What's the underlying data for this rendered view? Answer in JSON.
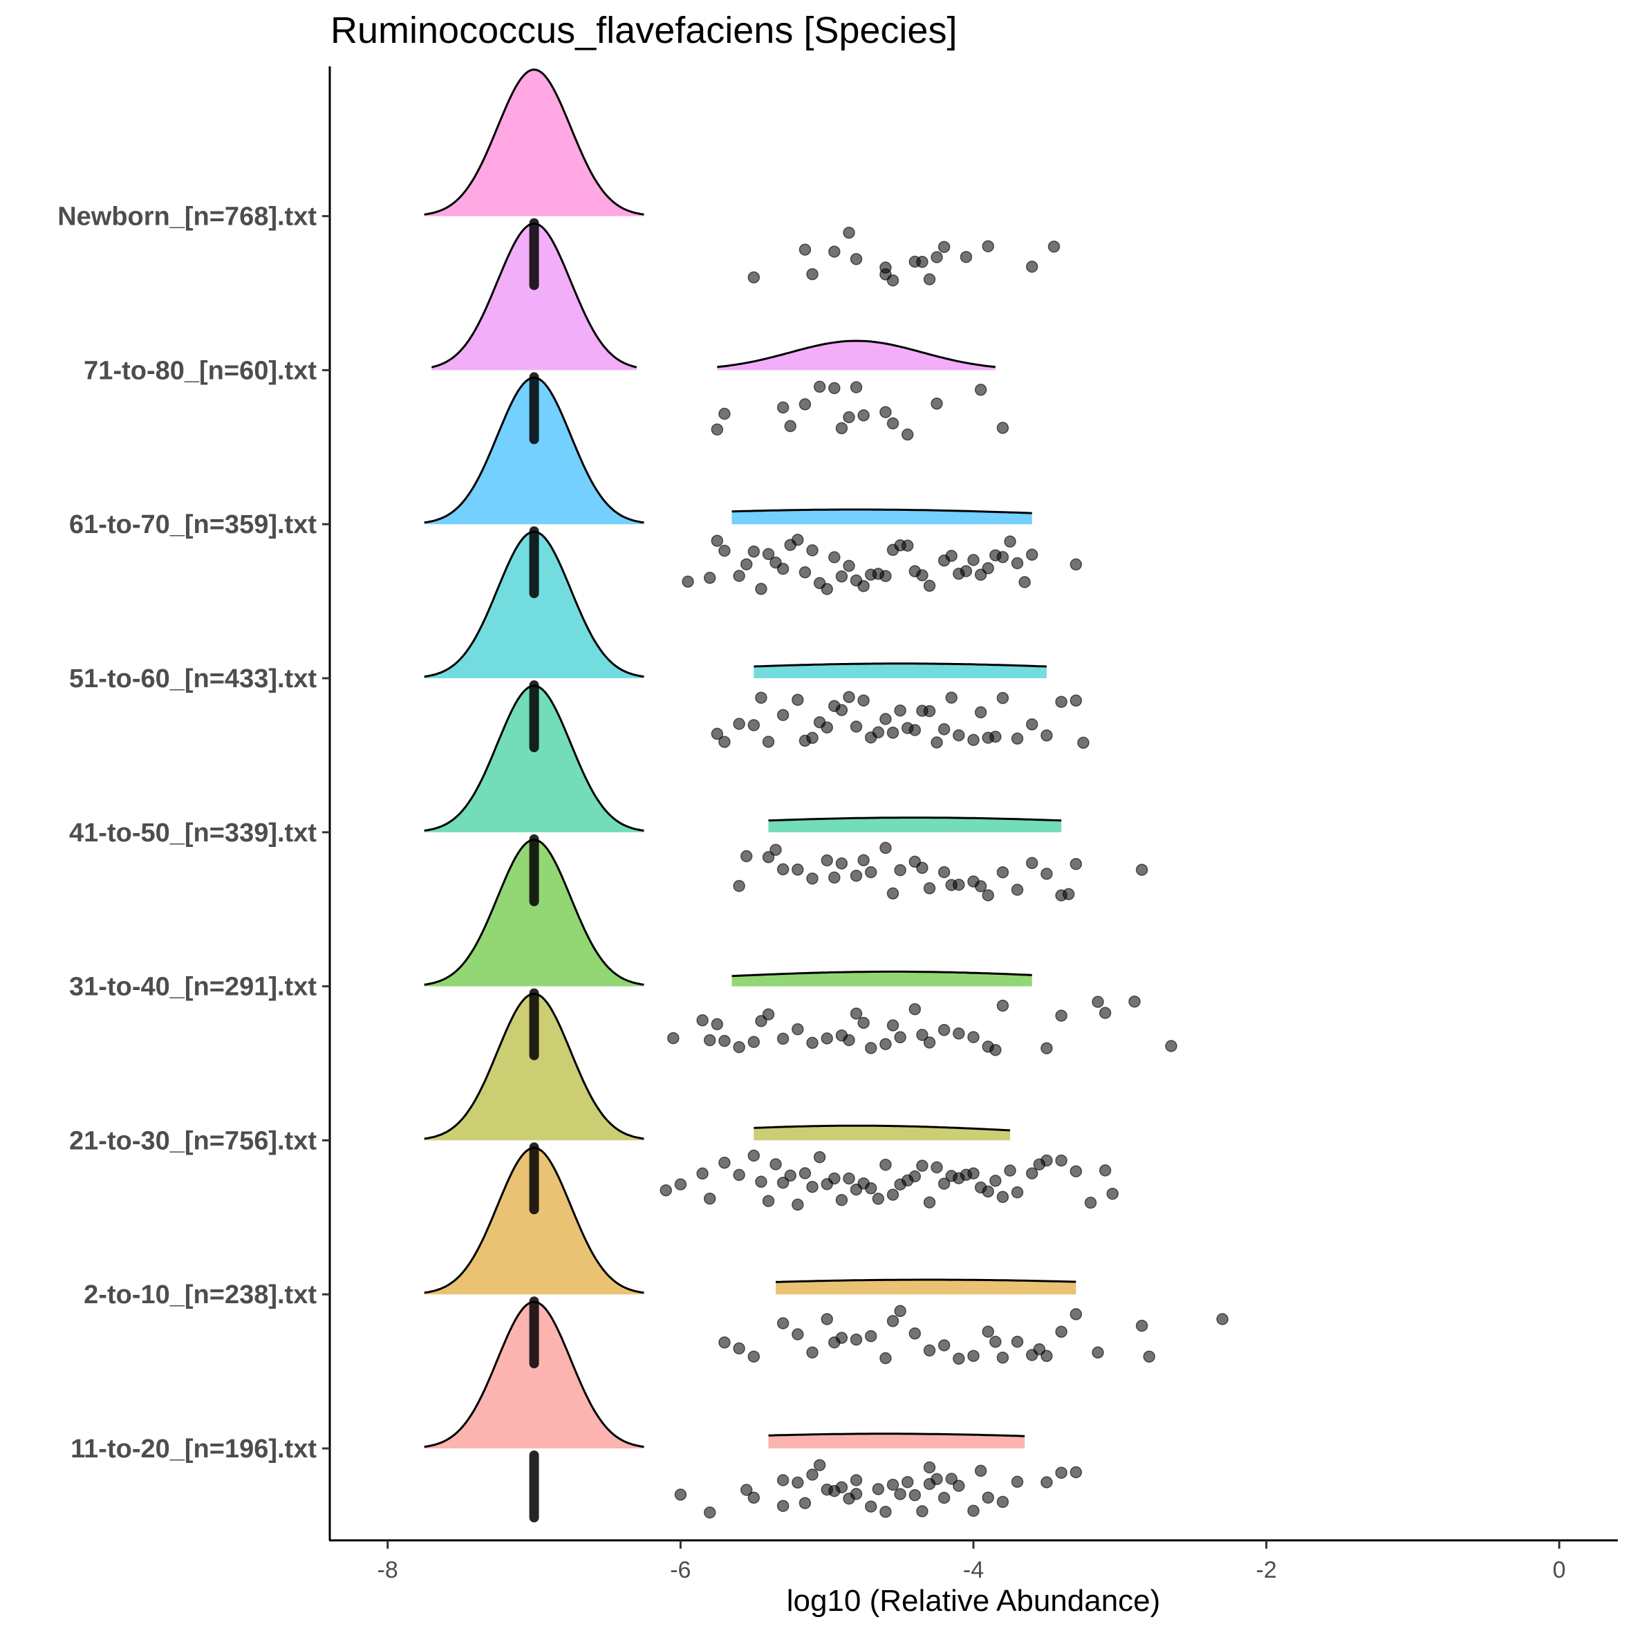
{
  "chart_data": {
    "type": "ridgeline-density-with-jitter",
    "title": "Ruminococcus_flavefaciens [Species]",
    "xlabel": "log10 (Relative Abundance)",
    "ylabel": "",
    "xlim": [
      -8.4,
      0.4
    ],
    "x_ticks": [
      -8,
      -6,
      -4,
      -2,
      0
    ],
    "x_tick_labels": [
      "-8",
      "-6",
      "-4",
      "-2",
      "0"
    ],
    "grid": false,
    "legend": "none",
    "zero_value": -7,
    "categories": [
      "11-to-20_[n=196].txt",
      "2-to-10_[n=238].txt",
      "21-to-30_[n=756].txt",
      "31-to-40_[n=291].txt",
      "41-to-50_[n=339].txt",
      "51-to-60_[n=433].txt",
      "61-to-70_[n=359].txt",
      "71-to-80_[n=60].txt",
      "Newborn_[n=768].txt"
    ],
    "series": [
      {
        "name": "11-to-20_[n=196].txt",
        "color": "#F8766D",
        "zero_density": {
          "center": -7,
          "sd": 0.25,
          "range": [
            -7.75,
            -6.25
          ]
        },
        "nonzero_density": {
          "mean": -4.6,
          "sd": 1.6,
          "range": [
            -5.4,
            -3.65
          ],
          "height": 0.1
        },
        "points": [
          -6.0,
          -5.8,
          -5.55,
          -5.5,
          -5.3,
          -5.3,
          -5.2,
          -5.15,
          -5.1,
          -5.05,
          -5.0,
          -4.95,
          -4.9,
          -4.85,
          -4.8,
          -4.8,
          -4.7,
          -4.65,
          -4.6,
          -4.55,
          -4.5,
          -4.45,
          -4.4,
          -4.35,
          -4.3,
          -4.3,
          -4.25,
          -4.2,
          -4.15,
          -4.1,
          -4.0,
          -3.95,
          -3.9,
          -3.8,
          -3.7,
          -3.5,
          -3.4,
          -3.3
        ]
      },
      {
        "name": "2-to-10_[n=238].txt",
        "color": "#D89000",
        "zero_density": {
          "center": -7,
          "sd": 0.25,
          "range": [
            -7.75,
            -6.25
          ]
        },
        "nonzero_density": {
          "mean": -4.3,
          "sd": 1.8,
          "range": [
            -5.35,
            -3.3
          ],
          "height": 0.1
        },
        "points": [
          -5.7,
          -5.6,
          -5.5,
          -5.3,
          -5.2,
          -5.1,
          -5.0,
          -4.95,
          -4.9,
          -4.8,
          -4.7,
          -4.6,
          -4.55,
          -4.5,
          -4.4,
          -4.3,
          -4.2,
          -4.1,
          -4.0,
          -3.9,
          -3.85,
          -3.8,
          -3.7,
          -3.6,
          -3.55,
          -3.5,
          -3.4,
          -3.3,
          -3.15,
          -2.85,
          -2.8,
          -2.3
        ]
      },
      {
        "name": "21-to-30_[n=756].txt",
        "color": "#A3A500",
        "zero_density": {
          "center": -7,
          "sd": 0.25,
          "range": [
            -7.75,
            -6.25
          ]
        },
        "nonzero_density": {
          "mean": -4.8,
          "sd": 1.2,
          "range": [
            -5.5,
            -3.75
          ],
          "height": 0.1
        },
        "points": [
          -6.1,
          -6.0,
          -5.85,
          -5.8,
          -5.7,
          -5.6,
          -5.5,
          -5.45,
          -5.4,
          -5.35,
          -5.3,
          -5.25,
          -5.2,
          -5.15,
          -5.1,
          -5.05,
          -5.0,
          -4.95,
          -4.9,
          -4.85,
          -4.8,
          -4.75,
          -4.7,
          -4.65,
          -4.6,
          -4.55,
          -4.5,
          -4.45,
          -4.4,
          -4.35,
          -4.3,
          -4.25,
          -4.2,
          -4.15,
          -4.1,
          -4.05,
          -4.0,
          -3.95,
          -3.9,
          -3.85,
          -3.8,
          -3.75,
          -3.7,
          -3.6,
          -3.55,
          -3.5,
          -3.4,
          -3.3,
          -3.2,
          -3.1,
          -3.05
        ]
      },
      {
        "name": "31-to-40_[n=291].txt",
        "color": "#39B600",
        "zero_density": {
          "center": -7,
          "sd": 0.25,
          "range": [
            -7.75,
            -6.25
          ]
        },
        "nonzero_density": {
          "mean": -4.55,
          "sd": 1.3,
          "range": [
            -5.65,
            -3.6
          ],
          "height": 0.1
        },
        "points": [
          -6.05,
          -5.85,
          -5.8,
          -5.75,
          -5.7,
          -5.6,
          -5.5,
          -5.45,
          -5.4,
          -5.3,
          -5.2,
          -5.1,
          -5.0,
          -4.9,
          -4.85,
          -4.8,
          -4.75,
          -4.7,
          -4.6,
          -4.55,
          -4.5,
          -4.4,
          -4.35,
          -4.3,
          -4.2,
          -4.1,
          -4.0,
          -3.9,
          -3.85,
          -3.8,
          -3.5,
          -3.4,
          -3.15,
          -3.1,
          -2.9,
          -2.65
        ]
      },
      {
        "name": "41-to-50_[n=339].txt",
        "color": "#00BF7D",
        "zero_density": {
          "center": -7,
          "sd": 0.25,
          "range": [
            -7.75,
            -6.25
          ]
        },
        "nonzero_density": {
          "mean": -4.4,
          "sd": 1.5,
          "range": [
            -5.4,
            -3.4
          ],
          "height": 0.1
        },
        "points": [
          -5.6,
          -5.55,
          -5.4,
          -5.35,
          -5.3,
          -5.2,
          -5.1,
          -5.0,
          -4.95,
          -4.9,
          -4.8,
          -4.75,
          -4.7,
          -4.6,
          -4.55,
          -4.5,
          -4.4,
          -4.35,
          -4.3,
          -4.2,
          -4.15,
          -4.1,
          -4.0,
          -3.95,
          -3.9,
          -3.8,
          -3.7,
          -3.6,
          -3.5,
          -3.4,
          -3.35,
          -3.3,
          -2.85
        ]
      },
      {
        "name": "51-to-60_[n=433].txt",
        "color": "#00BFC4",
        "zero_density": {
          "center": -7,
          "sd": 0.25,
          "range": [
            -7.75,
            -6.25
          ]
        },
        "nonzero_density": {
          "mean": -4.5,
          "sd": 1.5,
          "range": [
            -5.5,
            -3.5
          ],
          "height": 0.1
        },
        "points": [
          -5.75,
          -5.7,
          -5.6,
          -5.5,
          -5.45,
          -5.4,
          -5.3,
          -5.2,
          -5.15,
          -5.1,
          -5.05,
          -5.0,
          -4.95,
          -4.9,
          -4.85,
          -4.8,
          -4.75,
          -4.7,
          -4.65,
          -4.6,
          -4.55,
          -4.5,
          -4.45,
          -4.4,
          -4.35,
          -4.3,
          -4.25,
          -4.2,
          -4.15,
          -4.1,
          -4.0,
          -3.95,
          -3.9,
          -3.85,
          -3.8,
          -3.7,
          -3.6,
          -3.5,
          -3.4,
          -3.3,
          -3.25
        ]
      },
      {
        "name": "61-to-70_[n=359].txt",
        "color": "#00A9FF",
        "zero_density": {
          "center": -7,
          "sd": 0.25,
          "range": [
            -7.75,
            -6.25
          ]
        },
        "nonzero_density": {
          "mean": -4.8,
          "sd": 1.6,
          "range": [
            -5.65,
            -3.6
          ],
          "height": 0.1
        },
        "points": [
          -5.95,
          -5.8,
          -5.75,
          -5.7,
          -5.6,
          -5.55,
          -5.5,
          -5.45,
          -5.4,
          -5.35,
          -5.3,
          -5.25,
          -5.2,
          -5.15,
          -5.1,
          -5.05,
          -5.0,
          -4.95,
          -4.9,
          -4.85,
          -4.8,
          -4.75,
          -4.7,
          -4.65,
          -4.6,
          -4.55,
          -4.5,
          -4.45,
          -4.4,
          -4.35,
          -4.3,
          -4.2,
          -4.15,
          -4.1,
          -4.05,
          -4.0,
          -3.95,
          -3.9,
          -3.85,
          -3.8,
          -3.75,
          -3.7,
          -3.65,
          -3.6,
          -3.3
        ]
      },
      {
        "name": "71-to-80_[n=60].txt",
        "color": "#E76BF3",
        "zero_density": {
          "center": -7,
          "sd": 0.25,
          "range": [
            -7.7,
            -6.3
          ]
        },
        "nonzero_density": {
          "mean": -4.8,
          "sd": 0.45,
          "range": [
            -5.75,
            -3.85
          ],
          "height": 0.2
        },
        "points": [
          -5.75,
          -5.7,
          -5.3,
          -5.25,
          -5.15,
          -5.05,
          -4.95,
          -4.9,
          -4.85,
          -4.8,
          -4.75,
          -4.6,
          -4.55,
          -4.45,
          -4.25,
          -3.95,
          -3.8
        ]
      },
      {
        "name": "Newborn_[n=768].txt",
        "color": "#FF61CC",
        "zero_density": {
          "center": -7,
          "sd": 0.25,
          "range": [
            -7.75,
            -6.25
          ]
        },
        "nonzero_density": null,
        "points": [
          -5.5,
          -5.15,
          -5.1,
          -4.95,
          -4.85,
          -4.8,
          -4.6,
          -4.6,
          -4.55,
          -4.4,
          -4.35,
          -4.3,
          -4.25,
          -4.2,
          -4.05,
          -3.9,
          -3.6,
          -3.45
        ]
      }
    ]
  }
}
